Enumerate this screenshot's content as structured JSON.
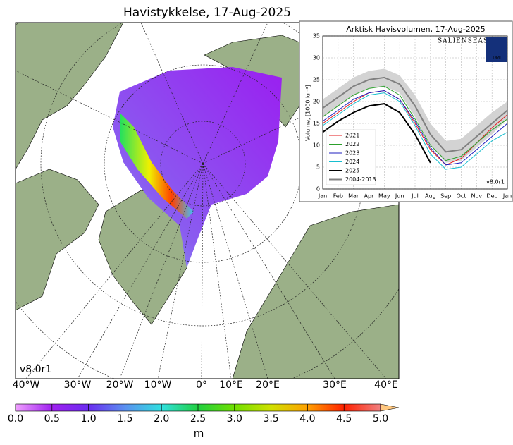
{
  "map": {
    "title": "Havistykkelse, 17-Aug-2025",
    "version": "v8.0r1",
    "lon_labels": [
      "40°W",
      "30°W",
      "20°W",
      "10°W",
      "0°",
      "10°E",
      "20°E",
      "30°E",
      "40°E"
    ]
  },
  "colorbar": {
    "unit": "m",
    "ticks": [
      {
        "value": 0,
        "label": "0.0"
      },
      {
        "value": 0.5,
        "label": "0.5"
      },
      {
        "value": 1,
        "label": "1.0"
      },
      {
        "value": 1.5,
        "label": "1.5"
      },
      {
        "value": 2,
        "label": "2.0"
      },
      {
        "value": 2.5,
        "label": "2.5"
      },
      {
        "value": 3,
        "label": "3.0"
      },
      {
        "value": 3.5,
        "label": "3.5"
      },
      {
        "value": 4,
        "label": "4.0"
      },
      {
        "value": 4.5,
        "label": "4.5"
      },
      {
        "value": 5,
        "label": "5.0"
      }
    ],
    "lim": [
      0,
      5
    ]
  },
  "chart_data": {
    "type": "line",
    "title": "Arktisk Havisvolumen, 17-Aug-2025",
    "ylabel": "Volume, [1000 km³]",
    "logo": "SALIENSEAS",
    "badge": "DMI",
    "version": "v8.0r1",
    "categories": [
      "Jan",
      "Feb",
      "Mar",
      "Apr",
      "May",
      "Jun",
      "Jul",
      "Aug",
      "Sep",
      "Oct",
      "Nov",
      "Dec",
      "Jan"
    ],
    "ylim": [
      0,
      35
    ],
    "yticks": [
      0,
      5,
      10,
      15,
      20,
      25,
      30,
      35
    ],
    "grid": true,
    "series": [
      {
        "name": "2021",
        "color": "#e31a1c",
        "values": [
          15,
          17.5,
          20,
          22,
          22.5,
          20.5,
          15,
          9,
          5.5,
          7,
          10.5,
          14,
          17
        ]
      },
      {
        "name": "2022",
        "color": "#2ca02c",
        "values": [
          16.5,
          19,
          21.5,
          23,
          23.5,
          21.5,
          16,
          10,
          6.5,
          7.5,
          10.5,
          13.5,
          16
        ]
      },
      {
        "name": "2023",
        "color": "#1f1fbf",
        "values": [
          15.5,
          18,
          20.5,
          22,
          22.5,
          20.5,
          15.5,
          9.5,
          5.5,
          6,
          9,
          12,
          15
        ]
      },
      {
        "name": "2024",
        "color": "#17becf",
        "values": [
          14.5,
          17,
          19.5,
          21.5,
          22,
          20,
          14.5,
          8,
          4.5,
          5,
          8,
          11,
          13
        ]
      },
      {
        "name": "2025",
        "color": "#000000",
        "values": [
          13,
          15.5,
          17.5,
          19,
          19.5,
          17.5,
          12.5,
          6,
          null,
          null,
          null,
          null,
          null
        ]
      },
      {
        "name": "2004-2013",
        "color": "#808080",
        "values": [
          18.5,
          21,
          23.5,
          25,
          25.5,
          24,
          19,
          12.5,
          8.5,
          9,
          12,
          15,
          18
        ]
      }
    ],
    "band": {
      "color": "#d3d3d3",
      "upper": [
        20.5,
        23,
        25.5,
        27,
        27.5,
        26,
        21.5,
        15,
        11,
        11.5,
        14.5,
        17.5,
        20
      ],
      "lower": [
        16.5,
        19,
        21.5,
        23,
        23.5,
        22,
        16.5,
        10,
        6,
        6.5,
        9.5,
        12.5,
        16
      ]
    }
  }
}
